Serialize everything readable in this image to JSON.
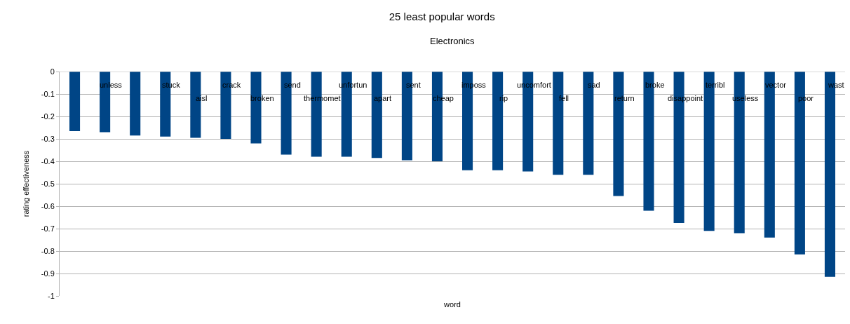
{
  "chart_data": {
    "type": "bar",
    "title": "25 least popular words",
    "subtitle": "Electronics",
    "xlabel": "word",
    "ylabel": "rating effectiveness",
    "categories": [
      null,
      "unless",
      null,
      "stuck",
      "aisl",
      "crack",
      "broken",
      "send",
      "thermomet",
      "unfortun",
      "apart",
      "sent",
      "cheap",
      "imposs",
      "rip",
      "uncomfort",
      "fell",
      "sad",
      "return",
      "broke",
      "disappoint",
      "terribl",
      "useless",
      "vector",
      "poor",
      "wast"
    ],
    "values": [
      -0.266,
      -0.27,
      -0.285,
      -0.29,
      -0.295,
      -0.3,
      -0.32,
      -0.37,
      -0.38,
      -0.38,
      -0.385,
      -0.395,
      -0.4,
      -0.44,
      -0.44,
      -0.445,
      -0.46,
      -0.46,
      -0.555,
      -0.62,
      -0.675,
      -0.71,
      -0.72,
      -0.74,
      -0.815,
      -0.915
    ],
    "color": "#004586",
    "ylim": [
      -1,
      0
    ],
    "yticks": [
      -1,
      -0.9,
      -0.8,
      -0.7,
      -0.6,
      -0.5,
      -0.4,
      -0.3,
      -0.2,
      -0.1,
      0
    ],
    "grid": "y",
    "legend": false
  }
}
